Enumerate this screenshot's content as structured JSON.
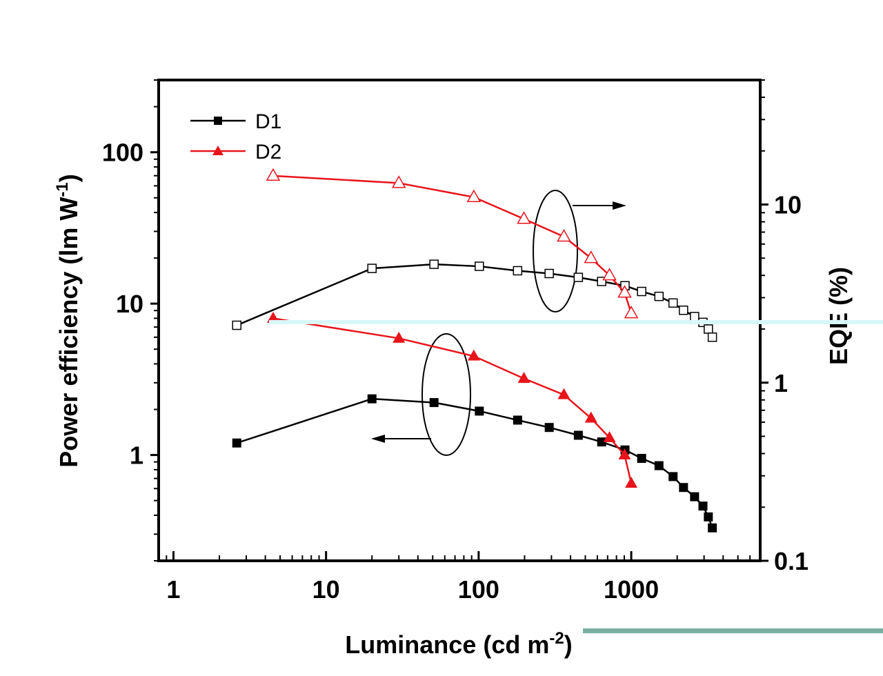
{
  "chart_data": {
    "type": "scatter",
    "x_axis": {
      "label": "Luminance (cd m",
      "label_superscript": "-2",
      "label_close": ")",
      "scale": "log",
      "range": [
        0.8,
        7000
      ],
      "ticks": [
        1,
        10,
        100,
        1000
      ],
      "tick_labels": [
        "1",
        "10",
        "100",
        "1000"
      ]
    },
    "y_left": {
      "label": "Power efficiency (lm W",
      "label_superscript": "-1",
      "label_close": ")",
      "scale": "log",
      "range": [
        0.2,
        300
      ],
      "ticks": [
        1,
        10,
        100
      ],
      "tick_labels": [
        "1",
        "10",
        "100"
      ]
    },
    "y_right": {
      "label": "EQE (%)",
      "scale": "log",
      "range": [
        0.1,
        50
      ],
      "ticks": [
        0.1,
        1,
        10
      ],
      "tick_labels": [
        "0.1",
        "1",
        "10"
      ]
    },
    "legend": {
      "placement": "top-left",
      "entries": [
        {
          "label": "D1",
          "color": "#000000",
          "marker": "square"
        },
        {
          "label": "D2",
          "color": "#e8141b",
          "marker": "triangle"
        }
      ]
    },
    "series": [
      {
        "name": "D1",
        "axis": "left",
        "color": "#000000",
        "marker": "square",
        "filled": true,
        "x": [
          2.6,
          20,
          51,
          101,
          180,
          290,
          450,
          640,
          910,
          1170,
          1520,
          1880,
          2200,
          2600,
          2950,
          3200,
          3400
        ],
        "y": [
          1.2,
          2.35,
          2.22,
          1.95,
          1.7,
          1.52,
          1.35,
          1.22,
          1.08,
          0.95,
          0.85,
          0.72,
          0.61,
          0.53,
          0.46,
          0.39,
          0.33
        ]
      },
      {
        "name": "D2",
        "axis": "left",
        "color": "#e8141b",
        "marker": "triangle",
        "filled": true,
        "x": [
          4.5,
          30,
          93,
          198,
          362,
          545,
          720,
          905,
          1000
        ],
        "y": [
          8.0,
          5.9,
          4.5,
          3.2,
          2.5,
          1.75,
          1.3,
          1.0,
          0.65
        ]
      },
      {
        "name": "D1",
        "axis": "right",
        "color": "#000000",
        "marker": "square",
        "filled": false,
        "x": [
          2.6,
          20,
          51,
          101,
          180,
          290,
          450,
          640,
          910,
          1170,
          1520,
          1880,
          2200,
          2600,
          2950,
          3200,
          3400
        ],
        "y": [
          2.1,
          4.38,
          4.62,
          4.5,
          4.25,
          4.1,
          3.9,
          3.7,
          3.5,
          3.25,
          3.05,
          2.8,
          2.55,
          2.35,
          2.18,
          2.0,
          1.8
        ]
      },
      {
        "name": "D2",
        "axis": "right",
        "color": "#e8141b",
        "marker": "triangle",
        "filled": false,
        "x": [
          4.5,
          30,
          93,
          198,
          362,
          545,
          720,
          905,
          1000
        ],
        "y": [
          14.5,
          13.2,
          11.0,
          8.3,
          6.6,
          5.0,
          4.0,
          3.2,
          2.45
        ]
      }
    ]
  }
}
